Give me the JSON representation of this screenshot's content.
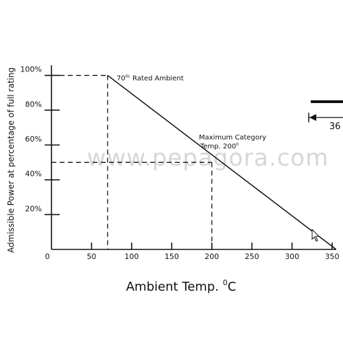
{
  "chart_data": {
    "type": "line",
    "xlabel": "Ambient Temp. ",
    "xlabel_sup": "0",
    "xlabel_unit": "C",
    "ylabel": "Admissible Power at percentage of full rating",
    "x_ticks": [
      0,
      50,
      100,
      150,
      200,
      250,
      300,
      350
    ],
    "y_ticks": [
      {
        "value": 20,
        "label": "20%"
      },
      {
        "value": 40,
        "label": "40%"
      },
      {
        "value": 60,
        "label": "60%"
      },
      {
        "value": 80,
        "label": "80%"
      },
      {
        "value": 100,
        "label": "100%"
      }
    ],
    "xlim": [
      0,
      355
    ],
    "ylim": [
      0,
      105
    ],
    "series": [
      {
        "x": [
          70,
          355
        ],
        "y": [
          100,
          0
        ]
      }
    ],
    "guides": [
      {
        "x": 70,
        "y": 100
      },
      {
        "x": 200,
        "y": 50
      }
    ],
    "annotations": {
      "rated": {
        "label": "70",
        "sup": "0c",
        "rest": " Rated Ambient"
      },
      "max_line1": "Maximum Category",
      "max_line2": {
        "label": "Temp. 200",
        "sup": "0"
      }
    }
  },
  "watermark": "www.pepagora.com",
  "side_label": "36"
}
